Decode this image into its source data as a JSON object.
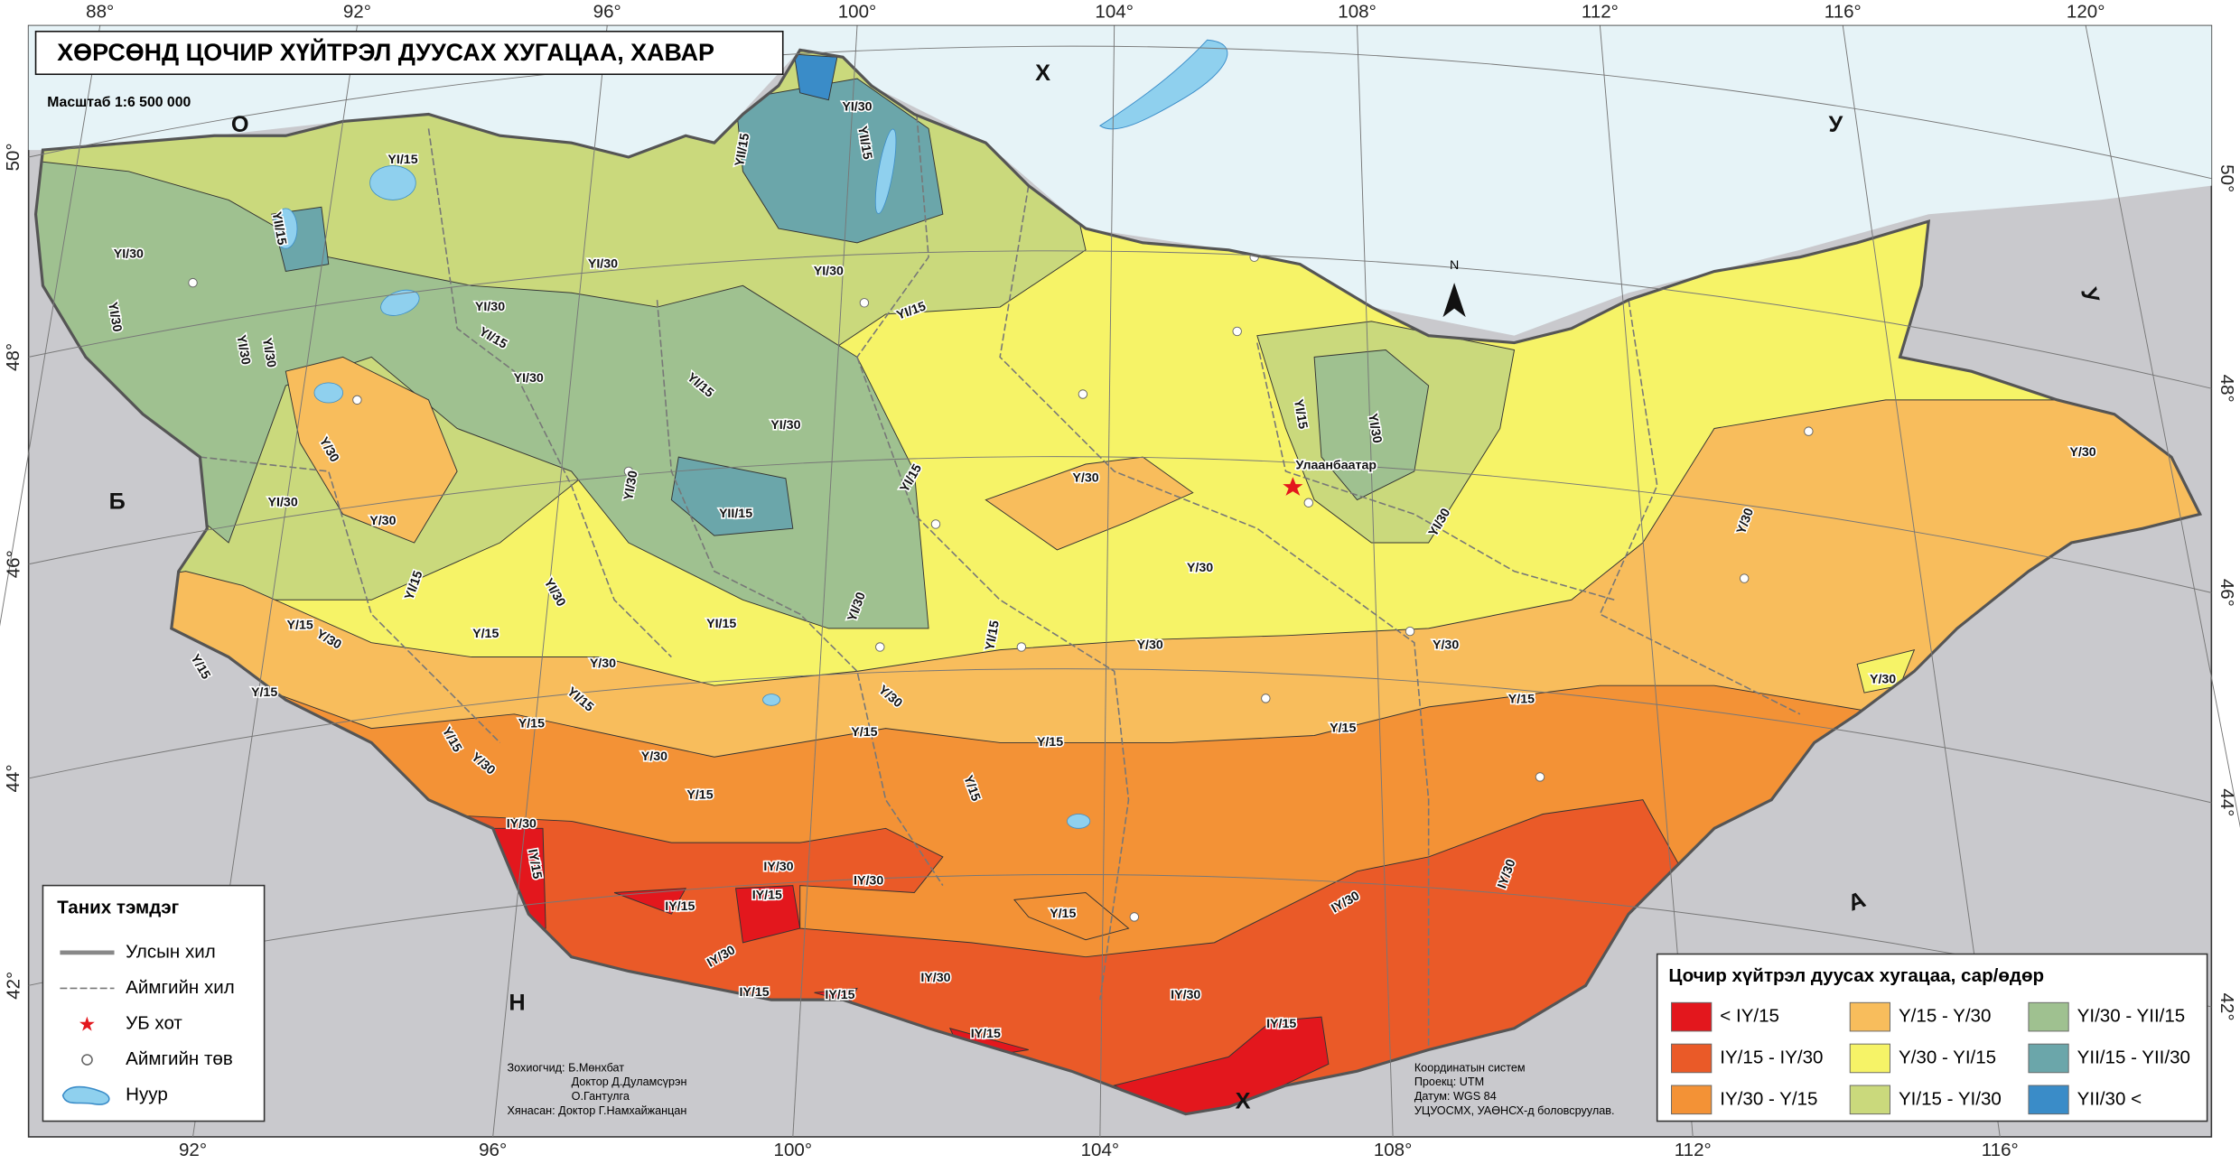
{
  "title": "ХӨРСӨНД ЦОЧИР ХҮЙТРЭЛ ДУУСАХ ХУГАЦАА, ХАВАР",
  "scale": "Масштаб 1:6 500 000",
  "graticule": {
    "top": [
      "88°",
      "92°",
      "96°",
      "100°",
      "104°",
      "108°",
      "112°",
      "116°",
      "120°"
    ],
    "bottom": [
      "92°",
      "96°",
      "100°",
      "104°",
      "108°",
      "112°",
      "116°"
    ],
    "left": [
      "50°",
      "48°",
      "46°",
      "44°",
      "42°"
    ],
    "right": [
      "50°",
      "48°",
      "46°",
      "44°",
      "42°"
    ]
  },
  "country_labels": [
    "Х",
    "О",
    "У",
    "У",
    "Б",
    "Н",
    "А",
    "Х"
  ],
  "north": "N",
  "capital": "Улаанбаатар",
  "zone_labels": [
    "YI/30",
    "YII/15",
    "YII/15",
    "YII/15",
    "YI/15",
    "YI/30",
    "YI/30",
    "YI/30",
    "YI/30",
    "YI/15",
    "YI/30",
    "YI/15",
    "YI/30",
    "YI/30",
    "YI/30",
    "YI/15",
    "YI/30",
    "Y/30",
    "YI/30",
    "Y/30",
    "YI/30",
    "YII/15",
    "YI/15",
    "Y/30",
    "Y/30",
    "YI/15",
    "YI/30",
    "Y/15",
    "Y/30",
    "Y/15",
    "YI/15",
    "YI/30",
    "YI/15",
    "Y/30",
    "Y/30",
    "Y/15",
    "Y/15",
    "YI/15",
    "Y/30",
    "Y/15",
    "Y/30",
    "Y/30",
    "Y/15",
    "Y/30",
    "Y/30",
    "Y/15",
    "Y/15",
    "Y/15",
    "Y/15",
    "Y/15",
    "Y/15",
    "IY/30",
    "IY/15",
    "IY/30",
    "IY/30",
    "IY/15",
    "IY/15",
    "Y/15",
    "IY/30",
    "IY/30",
    "IY/30",
    "IY/30",
    "IY/15",
    "IY/15",
    "IY/30",
    "IY/15",
    "IY/15",
    "Y/30",
    "Y/30",
    "YI/30",
    "YI/15",
    "YI/30"
  ],
  "symbols_legend": {
    "title": "Таних тэмдэг",
    "items": [
      "Улсын хил",
      "Аймгийн хил",
      "УБ хот",
      "Аймгийн төв",
      "Нуур"
    ]
  },
  "zone_legend": {
    "title": "Цочир хүйтрэл дуусах хугацаа, сар/өдөр",
    "items": [
      {
        "label": "< IY/15",
        "color": "#e3171d"
      },
      {
        "label": "IY/15 - IY/30",
        "color": "#ea5a28"
      },
      {
        "label": "IY/30 - Y/15",
        "color": "#f39236"
      },
      {
        "label": "Y/15 - Y/30",
        "color": "#f8bd5c"
      },
      {
        "label": "Y/30 - YI/15",
        "color": "#f6f367"
      },
      {
        "label": "YI/15 - YI/30",
        "color": "#cad97c"
      },
      {
        "label": "YI/30 - YII/15",
        "color": "#9fc190"
      },
      {
        "label": "YII/15 - YII/30",
        "color": "#6ba6aa"
      },
      {
        "label": "YII/30 <",
        "color": "#3a8cc8"
      }
    ]
  },
  "credits": {
    "authors": [
      "Зохиогчид: Б.Мөнхбат",
      "Доктор Д.Дуламсүрэн",
      "О.Гантулга",
      "Хянасан: Доктор Г.Намхайжанцан"
    ],
    "projection": [
      "Координатын систем",
      "Проекц: UTM",
      "Датум: WGS 84",
      "УЦУОСМХ, УАӨНСХ-д боловсруулав."
    ]
  }
}
